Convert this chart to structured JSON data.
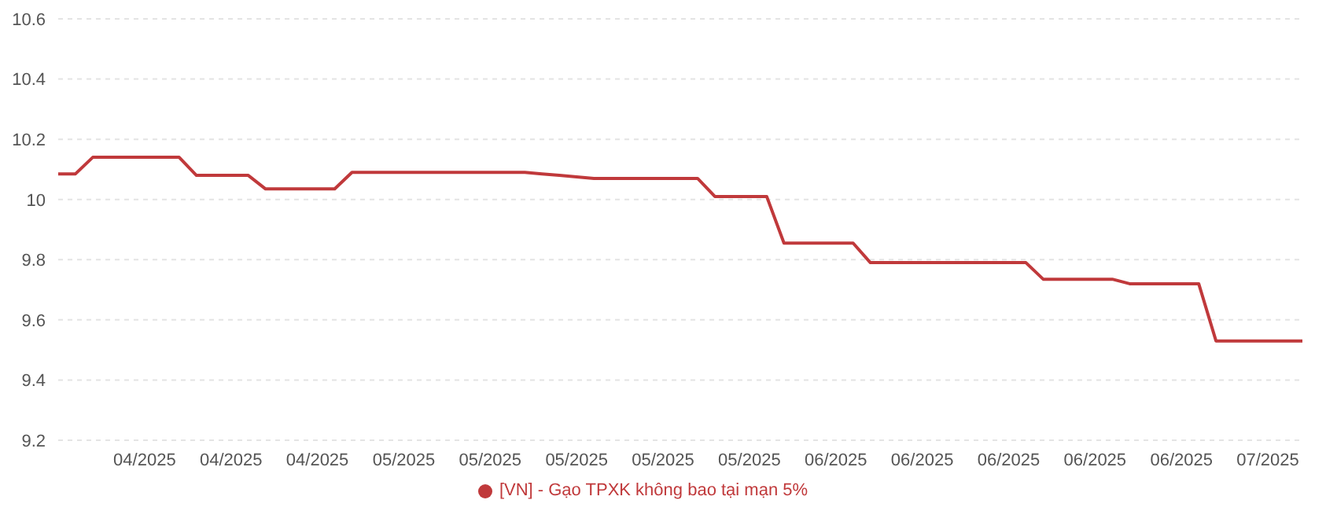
{
  "chart_data": {
    "type": "line",
    "categories": [
      null,
      null,
      null,
      null,
      null,
      "04/2025",
      null,
      null,
      null,
      null,
      "04/2025",
      null,
      null,
      null,
      null,
      "04/2025",
      null,
      null,
      null,
      null,
      "05/2025",
      null,
      null,
      null,
      null,
      "05/2025",
      null,
      null,
      null,
      null,
      "05/2025",
      null,
      null,
      null,
      null,
      "05/2025",
      null,
      null,
      null,
      null,
      "05/2025",
      null,
      null,
      null,
      null,
      "06/2025",
      null,
      null,
      null,
      null,
      "06/2025",
      null,
      null,
      null,
      null,
      "06/2025",
      null,
      null,
      null,
      null,
      "06/2025",
      null,
      null,
      null,
      null,
      "06/2025",
      null,
      null,
      null,
      null,
      "07/2025",
      null,
      null
    ],
    "series": [
      {
        "name": "[VN] - Gạo TPXK không bao tại mạn 5%",
        "color": "#c0393b",
        "values": [
          10.085,
          10.085,
          10.14,
          10.14,
          10.14,
          10.14,
          10.14,
          10.14,
          10.08,
          10.08,
          10.08,
          10.08,
          10.035,
          10.035,
          10.035,
          10.035,
          10.035,
          10.09,
          10.09,
          10.09,
          10.09,
          10.09,
          10.09,
          10.09,
          10.09,
          10.09,
          10.09,
          10.09,
          10.085,
          10.08,
          10.075,
          10.07,
          10.07,
          10.07,
          10.07,
          10.07,
          10.07,
          10.07,
          10.01,
          10.01,
          10.01,
          10.01,
          9.855,
          9.855,
          9.855,
          9.855,
          9.855,
          9.79,
          9.79,
          9.79,
          9.79,
          9.79,
          9.79,
          9.79,
          9.79,
          9.79,
          9.79,
          9.735,
          9.735,
          9.735,
          9.735,
          9.735,
          9.72,
          9.72,
          9.72,
          9.72,
          9.72,
          9.53,
          9.53,
          9.53,
          9.53,
          9.53,
          9.53
        ]
      }
    ],
    "ylim": [
      9.2,
      10.6
    ],
    "yticks": [
      9.2,
      9.4,
      9.6,
      9.8,
      10,
      10.2,
      10.4,
      10.6
    ],
    "grid": "y",
    "legend": "bottom"
  }
}
